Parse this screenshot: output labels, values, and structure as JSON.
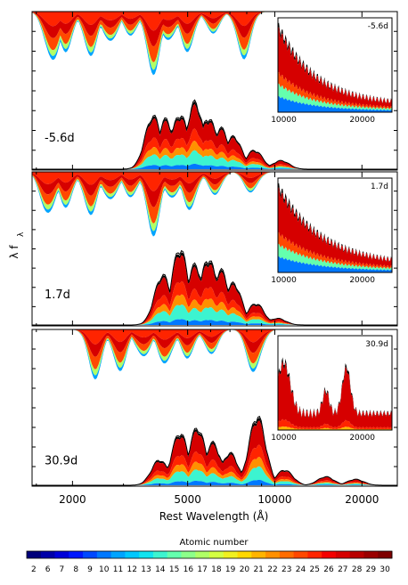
{
  "chart_data": {
    "type": "area",
    "ylabel": "λ f",
    "ylabel_sub": "λ",
    "xlabel": "Rest Wavelength (Å)",
    "x_scale": "log",
    "xlim": [
      1450,
      26500
    ],
    "x_ticks": [
      2000,
      5000,
      10000,
      20000
    ],
    "x_tick_labels": [
      "2000",
      "5000",
      "10000",
      "20000"
    ],
    "colorbar": {
      "title": "Atomic number",
      "values": [
        "2",
        "6",
        "7",
        "8",
        "9",
        "10",
        "11",
        "12",
        "13",
        "14",
        "15",
        "16",
        "17",
        "18",
        "19",
        "20",
        "21",
        "22",
        "23",
        "24",
        "25",
        "26",
        "27",
        "28",
        "29",
        "30"
      ],
      "colors": [
        "#00007a",
        "#0000a8",
        "#0000d8",
        "#0018ff",
        "#0048ff",
        "#0078ff",
        "#00a4ff",
        "#00c8ff",
        "#10e4f0",
        "#3cf4d0",
        "#64ffae",
        "#8cff8a",
        "#b0ff66",
        "#d4ff42",
        "#f0f020",
        "#ffd800",
        "#ffb400",
        "#ff9000",
        "#ff6c00",
        "#ff4800",
        "#ff2400",
        "#f40000",
        "#d60000",
        "#b80000",
        "#9a0000",
        "#7e0000"
      ]
    },
    "panels": [
      {
        "epoch": "-5.6d",
        "inset_label": "-5.6d",
        "inset_xlim": [
          9500,
          26000
        ],
        "inset_ticks": [
          "10000",
          "20000"
        ],
        "emission_peaks": [
          [
            3800,
            0.62
          ],
          [
            4200,
            0.58
          ],
          [
            4700,
            0.64
          ],
          [
            5300,
            0.78
          ],
          [
            5900,
            0.6
          ],
          [
            6500,
            0.48
          ],
          [
            7200,
            0.38
          ],
          [
            8500,
            0.22
          ],
          [
            10500,
            0.1
          ]
        ],
        "absorption_dips": [
          [
            1700,
            0.8
          ],
          [
            1900,
            0.55
          ],
          [
            2300,
            0.62
          ],
          [
            2700,
            0.5
          ],
          [
            3200,
            0.35
          ],
          [
            3800,
            0.86
          ],
          [
            4300,
            0.48
          ],
          [
            5000,
            0.55
          ],
          [
            6100,
            0.3
          ],
          [
            7800,
            0.65
          ]
        ]
      },
      {
        "epoch": "1.7d",
        "inset_label": "1.7d",
        "inset_xlim": [
          9500,
          26000
        ],
        "inset_ticks": [
          "10000",
          "20000"
        ],
        "emission_peaks": [
          [
            4100,
            0.6
          ],
          [
            4700,
            0.92
          ],
          [
            5300,
            0.72
          ],
          [
            5900,
            0.8
          ],
          [
            6500,
            0.66
          ],
          [
            7200,
            0.5
          ],
          [
            8600,
            0.26
          ],
          [
            10200,
            0.08
          ]
        ],
        "absorption_dips": [
          [
            1650,
            0.72
          ],
          [
            1900,
            0.5
          ],
          [
            2300,
            0.62
          ],
          [
            2700,
            0.48
          ],
          [
            3200,
            0.38
          ],
          [
            3800,
            0.9
          ],
          [
            4400,
            0.45
          ],
          [
            5100,
            0.55
          ],
          [
            6200,
            0.32
          ],
          [
            8300,
            0.3
          ]
        ]
      },
      {
        "epoch": "30.9d",
        "inset_label": "30.9d",
        "inset_xlim": [
          9500,
          26000
        ],
        "inset_ticks": [
          "10000",
          "20000"
        ],
        "emission_peaks": [
          [
            4000,
            0.3
          ],
          [
            4700,
            0.62
          ],
          [
            5400,
            0.68
          ],
          [
            6100,
            0.5
          ],
          [
            7000,
            0.38
          ],
          [
            8700,
            0.82
          ],
          [
            10800,
            0.18
          ],
          [
            15000,
            0.1
          ],
          [
            19000,
            0.07
          ]
        ],
        "absorption_dips": [
          [
            2400,
            0.68
          ],
          [
            2900,
            0.6
          ],
          [
            3500,
            0.45
          ],
          [
            4200,
            0.55
          ],
          [
            5000,
            0.4
          ],
          [
            6000,
            0.35
          ],
          [
            8500,
            0.65
          ]
        ]
      }
    ]
  }
}
